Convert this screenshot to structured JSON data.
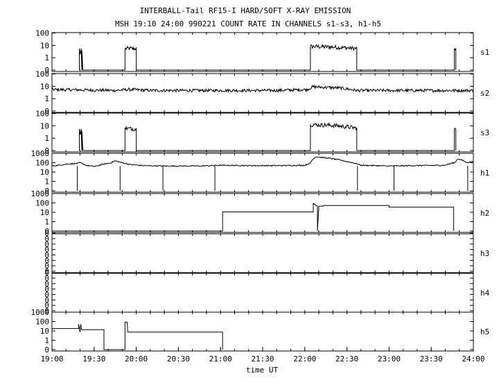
{
  "header": {
    "title": "INTERBALL-Tail RF15-I HARD/SOFT X-RAY EMISSION",
    "subtitle": "MSH 19:10 24:00 990221  COUNT RATE IN CHANNELS s1-s3, h1-h5"
  },
  "chart_data": {
    "type": "line",
    "title": "INTERBALL-Tail RF15-I HARD/SOFT X-RAY EMISSION",
    "subtitle": "MSH 19:10 24:00 990221  COUNT RATE IN CHANNELS s1-s3, h1-h5",
    "xlabel": "time UT",
    "x_ticks": [
      "19:00",
      "19:30",
      "20:00",
      "20:30",
      "21:00",
      "21:30",
      "22:00",
      "22:30",
      "23:00",
      "23:30",
      "24:00"
    ],
    "x_range_minutes": [
      1140,
      1440
    ],
    "y_scale": "log",
    "grid": false,
    "panels": [
      {
        "name": "s1",
        "y_ticks": [
          "100",
          "10",
          "1",
          "0"
        ],
        "series": [
          {
            "t": 1159.5,
            "v": 0
          },
          {
            "t": 1159.5,
            "v": 6
          },
          {
            "t": 1160.2,
            "v": 2
          },
          {
            "t": 1160.8,
            "v": 6
          },
          {
            "t": 1161.2,
            "v": 0
          },
          {
            "t": 1161.3,
            "v": 0
          },
          {
            "t": 1161.3,
            "v": 4
          },
          {
            "t": 1162,
            "v": 0
          },
          {
            "t": 1192,
            "v": 0
          },
          {
            "t": 1192,
            "v": 6
          },
          {
            "t": 1200,
            "v": 6
          },
          {
            "t": 1200,
            "v": 0
          },
          {
            "t": 1324,
            "v": 0
          },
          {
            "t": 1324,
            "v": 9
          },
          {
            "t": 1340,
            "v": 8
          },
          {
            "t": 1357,
            "v": 6
          },
          {
            "t": 1357,
            "v": 0
          },
          {
            "t": 1426.5,
            "v": 0
          },
          {
            "t": 1426.5,
            "v": 6
          },
          {
            "t": 1427.5,
            "v": 5
          },
          {
            "t": 1427.5,
            "v": 0
          }
        ]
      },
      {
        "name": "s2",
        "y_ticks": [
          "100",
          "10",
          "1",
          "0"
        ],
        "series": [
          {
            "t": 1140,
            "v": 6
          },
          {
            "t": 1185,
            "v": 5
          },
          {
            "t": 1195,
            "v": 6
          },
          {
            "t": 1210,
            "v": 5
          },
          {
            "t": 1300,
            "v": 5
          },
          {
            "t": 1322,
            "v": 6
          },
          {
            "t": 1326,
            "v": 10
          },
          {
            "t": 1345,
            "v": 8
          },
          {
            "t": 1357,
            "v": 5
          },
          {
            "t": 1400,
            "v": 5
          },
          {
            "t": 1440,
            "v": 5
          }
        ]
      },
      {
        "name": "s3",
        "y_ticks": [
          "100",
          "10",
          "1",
          "0"
        ],
        "series": [
          {
            "t": 1159.5,
            "v": 0
          },
          {
            "t": 1159.5,
            "v": 6
          },
          {
            "t": 1160.2,
            "v": 2
          },
          {
            "t": 1160.8,
            "v": 6
          },
          {
            "t": 1161.2,
            "v": 0
          },
          {
            "t": 1161.3,
            "v": 0
          },
          {
            "t": 1161.3,
            "v": 4
          },
          {
            "t": 1162,
            "v": 0
          },
          {
            "t": 1192,
            "v": 0
          },
          {
            "t": 1192,
            "v": 7
          },
          {
            "t": 1200,
            "v": 6
          },
          {
            "t": 1200,
            "v": 0
          },
          {
            "t": 1324,
            "v": 0
          },
          {
            "t": 1324,
            "v": 14
          },
          {
            "t": 1340,
            "v": 12
          },
          {
            "t": 1357,
            "v": 7
          },
          {
            "t": 1357,
            "v": 0
          },
          {
            "t": 1426.5,
            "v": 0
          },
          {
            "t": 1426.5,
            "v": 6
          },
          {
            "t": 1427.5,
            "v": 5
          },
          {
            "t": 1427.5,
            "v": 0
          }
        ]
      },
      {
        "name": "h1",
        "y_ticks": [
          "1000",
          "100",
          "10",
          "1",
          "0"
        ],
        "series": [
          {
            "t": 1140,
            "v": 50
          },
          {
            "t": 1145,
            "v": 60
          },
          {
            "t": 1150,
            "v": 80
          },
          {
            "t": 1158,
            "v": 95
          },
          {
            "t": 1160,
            "v": 110
          },
          {
            "t": 1163,
            "v": 75
          },
          {
            "t": 1165,
            "v": 55
          },
          {
            "t": 1171,
            "v": 45
          },
          {
            "t": 1182,
            "v": 110
          },
          {
            "t": 1185,
            "v": 180
          },
          {
            "t": 1190,
            "v": 110
          },
          {
            "t": 1196,
            "v": 70
          },
          {
            "t": 1205,
            "v": 55
          },
          {
            "t": 1220,
            "v": 50
          },
          {
            "t": 1230,
            "v": 50
          },
          {
            "t": 1245,
            "v": 50
          },
          {
            "t": 1255,
            "v": 55
          },
          {
            "t": 1260,
            "v": 60
          },
          {
            "t": 1280,
            "v": 55
          },
          {
            "t": 1300,
            "v": 55
          },
          {
            "t": 1320,
            "v": 60
          },
          {
            "t": 1324,
            "v": 100
          },
          {
            "t": 1328,
            "v": 500
          },
          {
            "t": 1340,
            "v": 300
          },
          {
            "t": 1350,
            "v": 150
          },
          {
            "t": 1360,
            "v": 60
          },
          {
            "t": 1380,
            "v": 50
          },
          {
            "t": 1400,
            "v": 55
          },
          {
            "t": 1420,
            "v": 60
          },
          {
            "t": 1427,
            "v": 120
          },
          {
            "t": 1429,
            "v": 300
          },
          {
            "t": 1435,
            "v": 120
          },
          {
            "t": 1440,
            "v": 150
          }
        ],
        "dropouts": [
          1158,
          1188.5,
          1219,
          1256,
          1357.5,
          1383.5,
          1436
        ]
      },
      {
        "name": "h2",
        "y_ticks": [
          "1000",
          "100",
          "10",
          "1",
          "0"
        ],
        "series": [
          {
            "t": 1140,
            "v": 0
          },
          {
            "t": 1261.5,
            "v": 0
          },
          {
            "t": 1261.5,
            "v": 12
          },
          {
            "t": 1326,
            "v": 12
          },
          {
            "t": 1326,
            "v": 100
          },
          {
            "t": 1329,
            "v": 50
          },
          {
            "t": 1329,
            "v": 0
          },
          {
            "t": 1330,
            "v": 50
          },
          {
            "t": 1333,
            "v": 50
          },
          {
            "t": 1333,
            "v": 60
          },
          {
            "t": 1380,
            "v": 60
          },
          {
            "t": 1380,
            "v": 40
          },
          {
            "t": 1426,
            "v": 40
          },
          {
            "t": 1426,
            "v": 0
          }
        ]
      },
      {
        "name": "h3",
        "y_ticks": [
          "0",
          "0",
          "0",
          "0",
          "0",
          "0",
          "0",
          "0"
        ],
        "series": []
      },
      {
        "name": "h4",
        "y_ticks": [
          "0",
          "0",
          "0",
          "0",
          "0",
          "0",
          "0",
          "0"
        ],
        "series": []
      },
      {
        "name": "h5",
        "y_ticks": [
          "1000",
          "100",
          "10",
          "1",
          "0"
        ],
        "series": [
          {
            "t": 1140,
            "v": 20
          },
          {
            "t": 1159,
            "v": 20
          },
          {
            "t": 1159,
            "v": 60
          },
          {
            "t": 1160,
            "v": 8
          },
          {
            "t": 1160.5,
            "v": 60
          },
          {
            "t": 1161,
            "v": 15
          },
          {
            "t": 1177,
            "v": 15
          },
          {
            "t": 1177,
            "v": 0
          },
          {
            "t": 1192,
            "v": 0
          },
          {
            "t": 1192,
            "v": 100
          },
          {
            "t": 1193.5,
            "v": 100
          },
          {
            "t": 1194,
            "v": 8
          },
          {
            "t": 1261.5,
            "v": 8
          },
          {
            "t": 1261.5,
            "v": 0
          }
        ]
      }
    ]
  }
}
